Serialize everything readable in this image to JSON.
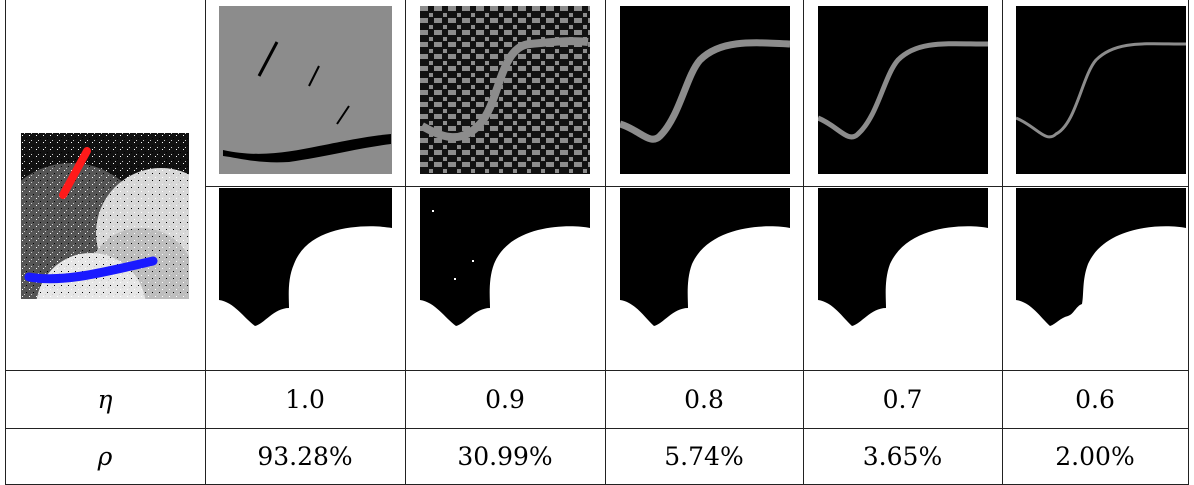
{
  "table": {
    "row_eta": {
      "symbol": "η",
      "values": [
        "1.0",
        "0.9",
        "0.8",
        "0.7",
        "0.6"
      ]
    },
    "row_rho": {
      "symbol": "ρ",
      "values": [
        "93.28%",
        "30.99%",
        "5.74%",
        "3.65%",
        "2.00%"
      ]
    }
  },
  "colors": {
    "scribble_foreground": "#ff1a1a",
    "scribble_background": "#1a1aff",
    "gray_level": "#8c8c8c",
    "black": "#000000",
    "white": "#ffffff"
  }
}
